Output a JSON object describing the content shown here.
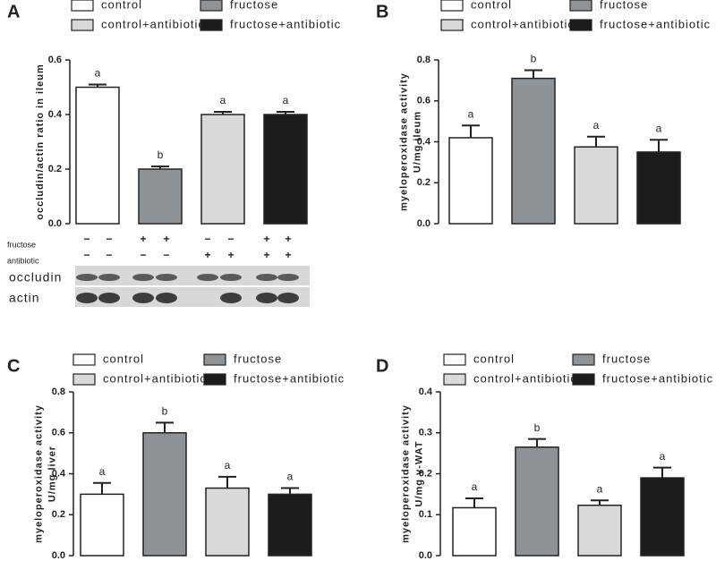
{
  "chart_data": [
    {
      "type": "bar",
      "panel_label": "A",
      "ylabel": [
        "occludin/actin ratio in ileum"
      ],
      "ylim": [
        0,
        0.6
      ],
      "yticks": [
        {
          "value": 0,
          "label": "0.0"
        },
        0.2,
        0.4,
        0.6
      ],
      "series": [
        {
          "name": "control",
          "color": "#ffffff",
          "values": [
            0.5
          ],
          "errors": [
            0.01
          ],
          "annotation": "a"
        },
        {
          "name": "fructose",
          "color": "#8e9398",
          "values": [
            0.2
          ],
          "errors": [
            0.01
          ],
          "annotation": "b"
        },
        {
          "name": "control+antibiotic",
          "color": "#d9d9d9",
          "values": [
            0.4
          ],
          "errors": [
            0.01
          ],
          "annotation": "a"
        },
        {
          "name": "fructose+antibiotic",
          "color": "#1c1c1c",
          "values": [
            0.4
          ],
          "errors": [
            0.01
          ],
          "annotation": "a"
        }
      ],
      "blot": {
        "rows": [
          {
            "name": "fructose",
            "signs": [
              "−",
              "−",
              "+",
              "+",
              "−",
              "−",
              "+",
              "+"
            ]
          },
          {
            "name": "antibiotic",
            "signs": [
              "−",
              "−",
              "−",
              "−",
              "+",
              "+",
              "+",
              "+"
            ]
          }
        ],
        "bands": [
          "occludin",
          "actin"
        ]
      }
    },
    {
      "type": "bar",
      "panel_label": "B",
      "ylabel": [
        "myeloperoxidase activity",
        "U/mg ileum"
      ],
      "ylim": [
        0,
        0.8
      ],
      "yticks": [
        {
          "value": 0,
          "label": "0.0"
        },
        0.2,
        0.4,
        0.6,
        0.8
      ],
      "series": [
        {
          "name": "control",
          "color": "#ffffff",
          "values": [
            0.42
          ],
          "errors": [
            0.06
          ],
          "annotation": "a"
        },
        {
          "name": "fructose",
          "color": "#8e9398",
          "values": [
            0.71
          ],
          "errors": [
            0.04
          ],
          "annotation": "b"
        },
        {
          "name": "control+antibiotic",
          "color": "#d9d9d9",
          "values": [
            0.375
          ],
          "errors": [
            0.05
          ],
          "annotation": "a"
        },
        {
          "name": "fructose+antibiotic",
          "color": "#1c1c1c",
          "values": [
            0.35
          ],
          "errors": [
            0.06
          ],
          "annotation": "a"
        }
      ]
    },
    {
      "type": "bar",
      "panel_label": "C",
      "ylabel": [
        "myeloperoxidase activity",
        "U/mg liver"
      ],
      "ylim": [
        0,
        0.8
      ],
      "yticks": [
        {
          "value": 0,
          "label": "0.0"
        },
        0.2,
        0.4,
        0.6,
        0.8
      ],
      "series": [
        {
          "name": "control",
          "color": "#ffffff",
          "values": [
            0.3
          ],
          "errors": [
            0.055
          ],
          "annotation": "a"
        },
        {
          "name": "fructose",
          "color": "#8e9398",
          "values": [
            0.6
          ],
          "errors": [
            0.05
          ],
          "annotation": "b"
        },
        {
          "name": "control+antibiotic",
          "color": "#d9d9d9",
          "values": [
            0.33
          ],
          "errors": [
            0.055
          ],
          "annotation": "a"
        },
        {
          "name": "fructose+antibiotic",
          "color": "#1c1c1c",
          "values": [
            0.3
          ],
          "errors": [
            0.03
          ],
          "annotation": "a"
        }
      ]
    },
    {
      "type": "bar",
      "panel_label": "D",
      "ylabel": [
        "myeloperoxidase activity",
        "U/mg v-WAT"
      ],
      "ylim": [
        0,
        0.4
      ],
      "yticks": [
        {
          "value": 0,
          "label": "0.0"
        },
        0.1,
        0.2,
        0.3,
        0.4
      ],
      "series": [
        {
          "name": "control",
          "color": "#ffffff",
          "values": [
            0.117
          ],
          "errors": [
            0.023
          ],
          "annotation": "a"
        },
        {
          "name": "fructose",
          "color": "#8e9398",
          "values": [
            0.265
          ],
          "errors": [
            0.02
          ],
          "annotation": "b"
        },
        {
          "name": "control+antibiotic",
          "color": "#d9d9d9",
          "values": [
            0.123
          ],
          "errors": [
            0.012
          ],
          "annotation": "a"
        },
        {
          "name": "fructose+antibiotic",
          "color": "#1c1c1c",
          "values": [
            0.19
          ],
          "errors": [
            0.025
          ],
          "annotation": "a"
        }
      ]
    }
  ]
}
